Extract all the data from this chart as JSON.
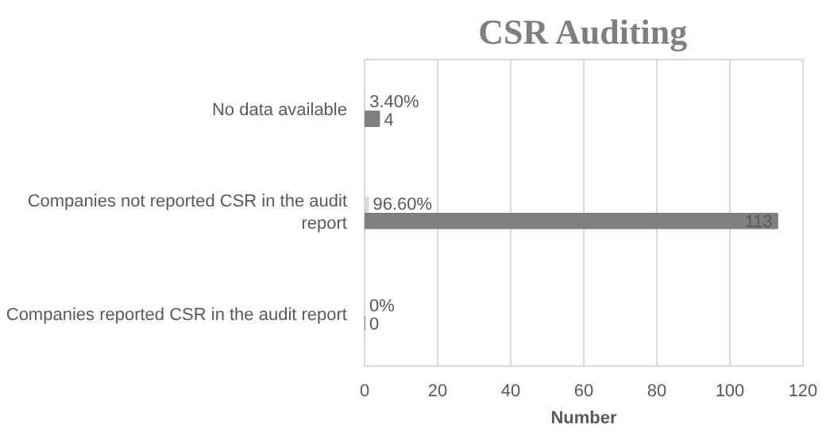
{
  "chart_data": {
    "type": "bar",
    "orientation": "horizontal",
    "title": "CSR Auditing",
    "xlabel": "Number",
    "categories": [
      "No data available",
      "Companies not reported CSR in the audit report",
      "Companies reported CSR in the audit report"
    ],
    "series": [
      {
        "color": "#d9d9d9",
        "values": [
          0.034,
          0.966,
          0
        ],
        "value_labels": [
          "3.40%",
          "96.60%",
          "0%"
        ]
      },
      {
        "color": "#7f7f7f",
        "values": [
          4,
          113,
          0
        ],
        "value_labels": [
          "4",
          "113",
          "0"
        ]
      }
    ],
    "xlim": [
      0,
      120
    ],
    "xticks": [
      0,
      20,
      40,
      60,
      80,
      100,
      120
    ],
    "grid": "x"
  }
}
